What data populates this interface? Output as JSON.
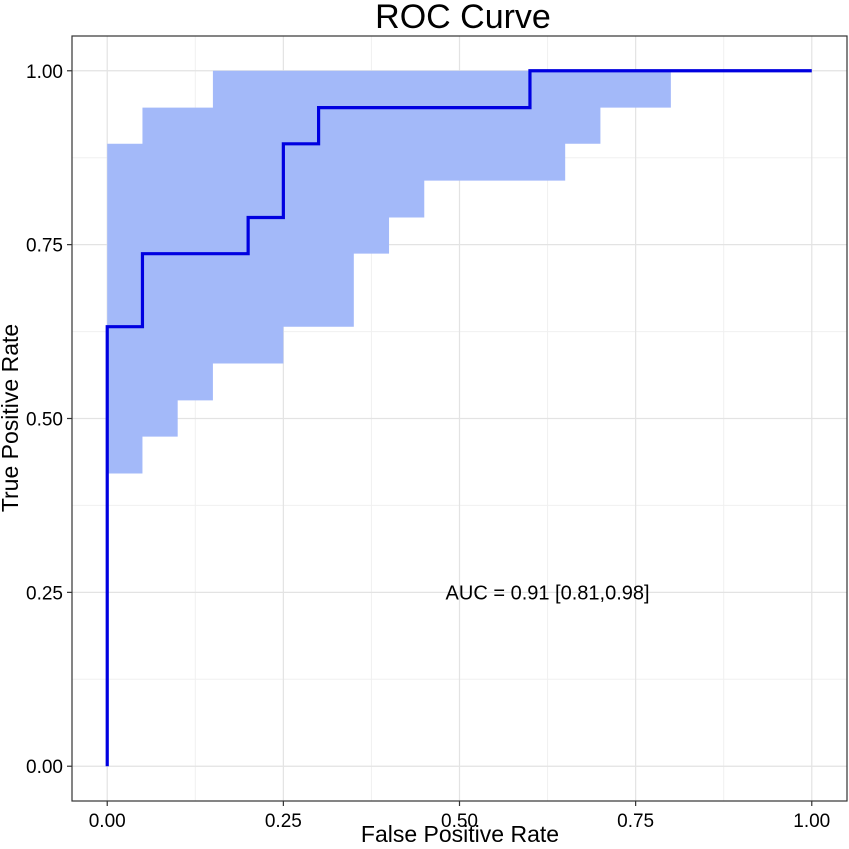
{
  "chart_data": {
    "type": "line",
    "title": "ROC Curve",
    "xlabel": "False Positive Rate",
    "ylabel": "True Positive Rate",
    "xlim": [
      -0.05,
      1.05
    ],
    "ylim": [
      -0.05,
      1.05
    ],
    "x_ticks": [
      0,
      0.25,
      0.5,
      0.75,
      1
    ],
    "x_tick_labels": [
      "0.00",
      "0.25",
      "0.50",
      "0.75",
      "1.00"
    ],
    "y_ticks": [
      0,
      0.25,
      0.5,
      0.75,
      1
    ],
    "y_tick_labels": [
      "0.00",
      "0.25",
      "0.50",
      "0.75",
      "1.00"
    ],
    "grid": true,
    "series": [
      {
        "name": "ROC",
        "color": "#0000e0",
        "points": [
          [
            0,
            0
          ],
          [
            0,
            0.632
          ],
          [
            0.05,
            0.632
          ],
          [
            0.05,
            0.737
          ],
          [
            0.2,
            0.737
          ],
          [
            0.2,
            0.789
          ],
          [
            0.25,
            0.789
          ],
          [
            0.25,
            0.895
          ],
          [
            0.3,
            0.895
          ],
          [
            0.3,
            0.947
          ],
          [
            0.6,
            0.947
          ],
          [
            0.6,
            1
          ],
          [
            1,
            1
          ]
        ]
      }
    ],
    "confidence_band": {
      "color": "#a3b9f9",
      "upper": [
        [
          0,
          0.895
        ],
        [
          0.05,
          0.895
        ],
        [
          0.05,
          0.947
        ],
        [
          0.15,
          0.947
        ],
        [
          0.15,
          1
        ],
        [
          1,
          1
        ]
      ],
      "lower": [
        [
          0,
          0.421
        ],
        [
          0.05,
          0.421
        ],
        [
          0.05,
          0.474
        ],
        [
          0.1,
          0.474
        ],
        [
          0.1,
          0.526
        ],
        [
          0.15,
          0.526
        ],
        [
          0.15,
          0.579
        ],
        [
          0.25,
          0.579
        ],
        [
          0.25,
          0.632
        ],
        [
          0.35,
          0.632
        ],
        [
          0.35,
          0.737
        ],
        [
          0.4,
          0.737
        ],
        [
          0.4,
          0.789
        ],
        [
          0.45,
          0.789
        ],
        [
          0.45,
          0.842
        ],
        [
          0.65,
          0.842
        ],
        [
          0.65,
          0.895
        ],
        [
          0.7,
          0.895
        ],
        [
          0.7,
          0.947
        ],
        [
          0.8,
          0.947
        ],
        [
          0.8,
          1
        ],
        [
          1,
          1
        ]
      ]
    },
    "annotations": [
      {
        "text": "AUC = 0.91 [0.81,0.98]",
        "x": 0.625,
        "y": 0.25
      }
    ]
  }
}
